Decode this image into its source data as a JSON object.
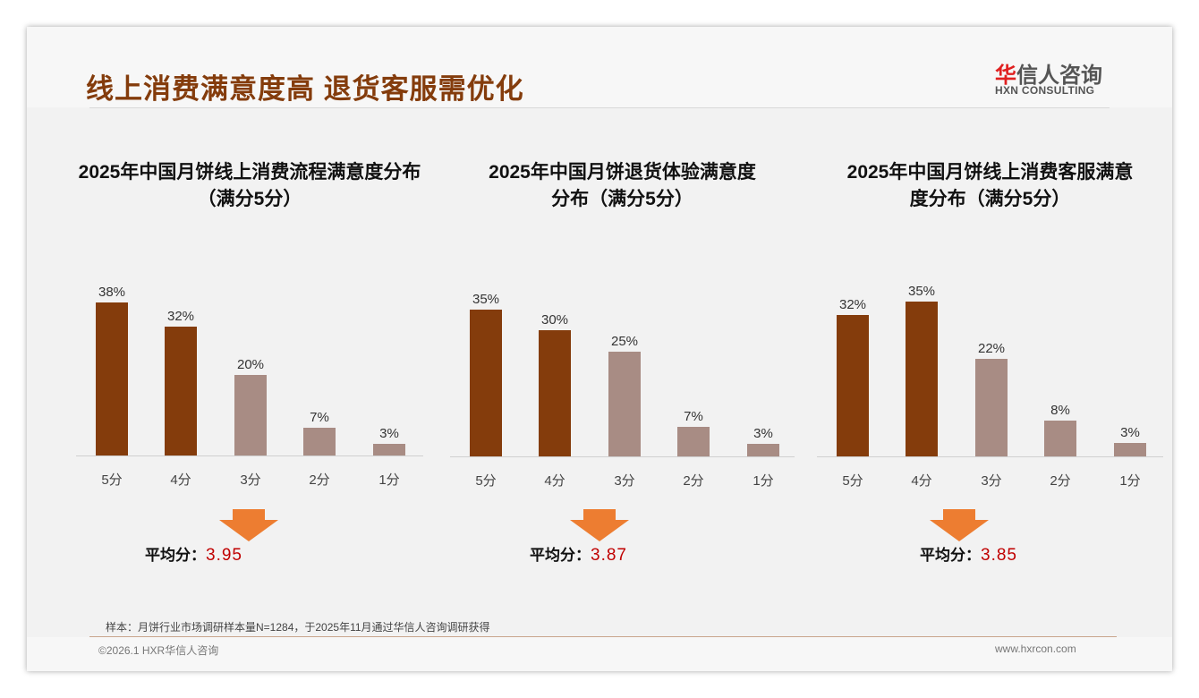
{
  "header": {
    "title": "线上消费满意度高 退货客服需优化",
    "logo_cn_red": "华",
    "logo_cn": "信人咨询",
    "logo_en": "HXN CONSULTING"
  },
  "colors": {
    "dark": "#843C0C",
    "light": "#A88C84",
    "arrow": "#ED7D31",
    "value": "#C00000"
  },
  "chart_data": [
    {
      "type": "bar",
      "title_line1": "2025年中国月饼线上消费流程满意度分布",
      "title_line2": "（满分5分）",
      "categories": [
        "5分",
        "4分",
        "3分",
        "2分",
        "1分"
      ],
      "values": [
        38,
        32,
        20,
        7,
        3
      ],
      "labels": [
        "38%",
        "32%",
        "20%",
        "7%",
        "3%"
      ],
      "unit": "%",
      "highlight": [
        true,
        true,
        false,
        false,
        false
      ],
      "avg_label": "平均分：",
      "avg_value": "3.95"
    },
    {
      "type": "bar",
      "title_line1": "2025年中国月饼退货体验满意度",
      "title_line2": "分布（满分5分）",
      "categories": [
        "5分",
        "4分",
        "3分",
        "2分",
        "1分"
      ],
      "values": [
        35,
        30,
        25,
        7,
        3
      ],
      "labels": [
        "35%",
        "30%",
        "25%",
        "7%",
        "3%"
      ],
      "unit": "%",
      "highlight": [
        true,
        true,
        false,
        false,
        false
      ],
      "avg_label": "平均分：",
      "avg_value": "3.87"
    },
    {
      "type": "bar",
      "title_line1": "2025年中国月饼线上消费客服满意",
      "title_line2": "度分布（满分5分）",
      "categories": [
        "5分",
        "4分",
        "3分",
        "2分",
        "1分"
      ],
      "values": [
        32,
        35,
        22,
        8,
        3
      ],
      "labels": [
        "32%",
        "35%",
        "22%",
        "8%",
        "3%"
      ],
      "unit": "%",
      "highlight": [
        true,
        true,
        false,
        false,
        false
      ],
      "avg_label": "平均分：",
      "avg_value": "3.85"
    }
  ],
  "footer": {
    "note": "样本：月饼行业市场调研样本量N=1284，于2025年11月通过华信人咨询调研获得",
    "copyright": "©2026.1 HXR华信人咨询",
    "website": "www.hxrcon.com"
  }
}
